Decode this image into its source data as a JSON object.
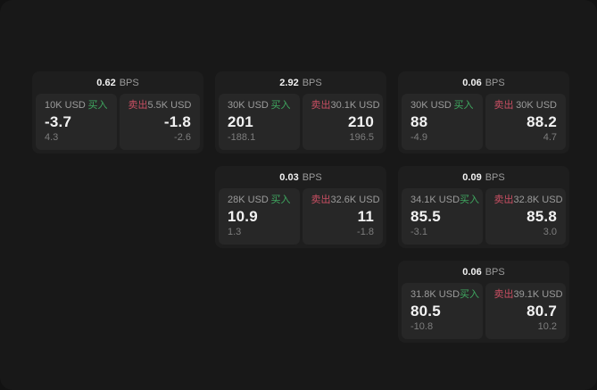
{
  "labels": {
    "buy": "买入",
    "sell": "卖出",
    "bps_unit": "BPS"
  },
  "theme": {
    "page_bg": "#121212",
    "panel_bg": "#181818",
    "card_bg": "#1e1e1e",
    "tile_bg": "#272727",
    "text_primary": "#f2f2f2",
    "text_label": "#9b9b9b",
    "text_muted": "#7d7d7d",
    "buy_color": "#3fa860",
    "sell_color": "#c94f63"
  },
  "cards": [
    {
      "bps": "0.62",
      "col": 1,
      "row": 1,
      "buy": {
        "size": "10K USD",
        "price": "-3.7",
        "delta": "4.3"
      },
      "sell": {
        "size": "5.5K USD",
        "price": "-1.8",
        "delta": "-2.6"
      }
    },
    {
      "bps": "2.92",
      "col": 2,
      "row": 1,
      "buy": {
        "size": "30K USD",
        "price": "201",
        "delta": "-188.1"
      },
      "sell": {
        "size": "30.1K USD",
        "price": "210",
        "delta": "196.5"
      }
    },
    {
      "bps": "0.06",
      "col": 3,
      "row": 1,
      "buy": {
        "size": "30K USD",
        "price": "88",
        "delta": "-4.9"
      },
      "sell": {
        "size": "30K USD",
        "price": "88.2",
        "delta": "4.7"
      }
    },
    {
      "bps": "0.03",
      "col": 2,
      "row": 2,
      "buy": {
        "size": "28K USD",
        "price": "10.9",
        "delta": "1.3"
      },
      "sell": {
        "size": "32.6K USD",
        "price": "11",
        "delta": "-1.8"
      }
    },
    {
      "bps": "0.09",
      "col": 3,
      "row": 2,
      "buy": {
        "size": "34.1K USD",
        "price": "85.5",
        "delta": "-3.1"
      },
      "sell": {
        "size": "32.8K USD",
        "price": "85.8",
        "delta": "3.0"
      }
    },
    {
      "bps": "0.06",
      "col": 3,
      "row": 3,
      "buy": {
        "size": "31.8K USD",
        "price": "80.5",
        "delta": "-10.8"
      },
      "sell": {
        "size": "39.1K USD",
        "price": "80.7",
        "delta": "10.2"
      }
    }
  ]
}
